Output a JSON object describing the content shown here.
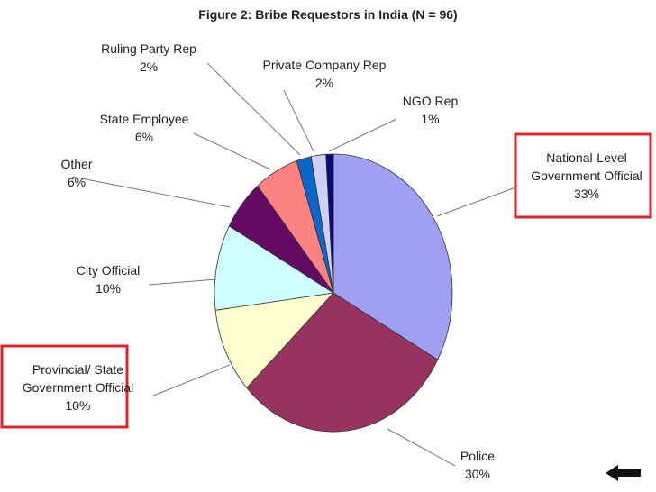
{
  "chart_data": {
    "type": "pie",
    "title": "Figure 2: Bribe Requestors in India (N = 96)",
    "categories": [
      "National-Level Government Official",
      "Police",
      "Provincial/ State Government Official",
      "City Official",
      "Other",
      "State Employee",
      "Ruling Party Rep",
      "Private Company Rep",
      "NGO Rep"
    ],
    "values": [
      33,
      30,
      10,
      10,
      6,
      6,
      2,
      2,
      1
    ],
    "value_labels": [
      "33%",
      "30%",
      "10%",
      "10%",
      "6%",
      "6%",
      "2%",
      "2%",
      "1%"
    ],
    "colors": [
      "#9f9ff3",
      "#973360",
      "#fdfdcd",
      "#cdfdfd",
      "#640a64",
      "#fd8282",
      "#0a66c8",
      "#cfcff7",
      "#0a0a78"
    ]
  }
}
